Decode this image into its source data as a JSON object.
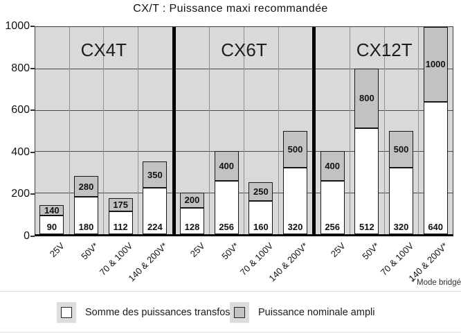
{
  "chart_data": {
    "type": "bar",
    "stacked": true,
    "title": "CX/T : Puissance maxi recommandée",
    "ylim": [
      0,
      1000
    ],
    "yticks": [
      0,
      200,
      400,
      600,
      800,
      1000
    ],
    "grid": "on",
    "categories": [
      "25V",
      "50V*",
      "70 & 100V",
      "140 & 200V*"
    ],
    "groups": [
      {
        "name": "CX4T",
        "transfo": [
          90,
          180,
          112,
          224
        ],
        "ampli": [
          140,
          280,
          175,
          350
        ]
      },
      {
        "name": "CX6T",
        "transfo": [
          128,
          256,
          160,
          320
        ],
        "ampli": [
          200,
          400,
          250,
          500
        ]
      },
      {
        "name": "CX12T",
        "transfo": [
          256,
          512,
          320,
          640
        ],
        "ampli": [
          400,
          800,
          500,
          1000
        ]
      }
    ],
    "series": [
      {
        "name": "Somme des puissances transfos",
        "role": "transfo",
        "color": "#ffffff"
      },
      {
        "name": "Puissance nominale ampli",
        "role": "ampli",
        "color": "#c2c2c2"
      }
    ],
    "legend": [
      {
        "label": "Somme des puissances transfos",
        "color": "#ffffff"
      },
      {
        "label": "Puissance nominale ampli",
        "color": "#c2c2c2"
      }
    ],
    "legend_position": "bottom",
    "footnote": "* Mode bridgé",
    "colors": {
      "plot_bg": "#d9d9d9",
      "transfo_fill": "#ffffff",
      "ampli_fill": "#c2c2c2",
      "grid_line": "#4a4a4a",
      "cell_line": "#8f8f8f",
      "divider": "#000000",
      "legend_patch": "#dcdcdc"
    }
  }
}
